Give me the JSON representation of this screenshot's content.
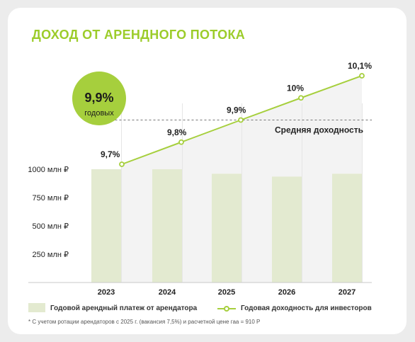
{
  "page": {
    "title": "ДОХОД ОТ АРЕНДНОГО ПОТОКА",
    "footnote": "* С учетом ротации арендаторов с 2025 г. (вакансия 7,5%) и расчетной цене гаа = 910 Р"
  },
  "badge": {
    "value": "9,9%",
    "label": "годовых"
  },
  "colors": {
    "accent": "#a6cf3d",
    "bar": "#e3ead0",
    "shade": "#f3f3f3",
    "text": "#222222"
  },
  "chart_data": {
    "type": "bar",
    "categories": [
      "2023",
      "2024",
      "2025",
      "2026",
      "2027"
    ],
    "y_ticks": [
      {
        "value": 250,
        "label": "250 млн ₽"
      },
      {
        "value": 500,
        "label": "500 млн ₽"
      },
      {
        "value": 750,
        "label": "750 млн ₽"
      },
      {
        "value": 1000,
        "label": "1000 млн ₽"
      }
    ],
    "ylim": [
      0,
      1050
    ],
    "series": [
      {
        "name": "Годовой арендный платеж от арендатора",
        "kind": "bar",
        "values": [
          1000,
          1000,
          960,
          935,
          960
        ]
      },
      {
        "name": "Годовая доходность для инвесторов",
        "kind": "line",
        "values": [
          9.7,
          9.8,
          9.9,
          10.0,
          10.1
        ],
        "labels": [
          "9,7%",
          "9,8%",
          "9,9%",
          "10%",
          "10,1%"
        ]
      }
    ],
    "average": {
      "value": 9.9,
      "label": "Средняя доходность"
    }
  }
}
